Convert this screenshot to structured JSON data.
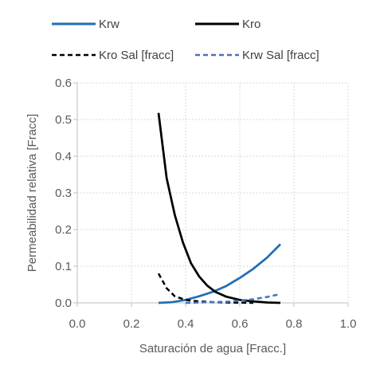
{
  "chart_data": {
    "type": "line",
    "xlabel": "Saturación de agua [Fracc.]",
    "ylabel": "Permeabilidad relativa [Fracc]",
    "xlim": [
      0.0,
      1.0
    ],
    "ylim": [
      0.0,
      0.6
    ],
    "x_ticks": [
      "0.0",
      "0.2",
      "0.4",
      "0.6",
      "0.8",
      "1.0"
    ],
    "y_ticks": [
      "0.0",
      "0.1",
      "0.2",
      "0.3",
      "0.4",
      "0.5",
      "0.6"
    ],
    "grid": true,
    "legend_position": "top",
    "series": [
      {
        "name": "Krw",
        "color": "#1f6fb4",
        "style": "solid",
        "x": [
          0.3,
          0.35,
          0.4,
          0.45,
          0.5,
          0.55,
          0.6,
          0.65,
          0.7,
          0.75
        ],
        "y": [
          0.0,
          0.002,
          0.008,
          0.018,
          0.03,
          0.046,
          0.068,
          0.093,
          0.123,
          0.16
        ]
      },
      {
        "name": "Kro",
        "color": "#000000",
        "style": "solid",
        "x": [
          0.3,
          0.33,
          0.36,
          0.39,
          0.42,
          0.45,
          0.48,
          0.51,
          0.55,
          0.6,
          0.65,
          0.7,
          0.75
        ],
        "y": [
          0.518,
          0.34,
          0.24,
          0.165,
          0.108,
          0.072,
          0.047,
          0.03,
          0.017,
          0.008,
          0.004,
          0.001,
          0.0
        ]
      },
      {
        "name": "Kro Sal [fracc]",
        "color": "#000000",
        "style": "dashed",
        "x": [
          0.3,
          0.33,
          0.36,
          0.4,
          0.45,
          0.5,
          0.55,
          0.6,
          0.65
        ],
        "y": [
          0.08,
          0.04,
          0.018,
          0.008,
          0.004,
          0.002,
          0.001,
          0.0005,
          0.0
        ]
      },
      {
        "name": "Krw Sal [fracc]",
        "color": "#4472c4",
        "style": "dashed",
        "x": [
          0.4,
          0.45,
          0.5,
          0.55,
          0.6,
          0.65,
          0.7,
          0.75
        ],
        "y": [
          0.0,
          0.001,
          0.002,
          0.003,
          0.006,
          0.01,
          0.016,
          0.024
        ]
      }
    ]
  }
}
